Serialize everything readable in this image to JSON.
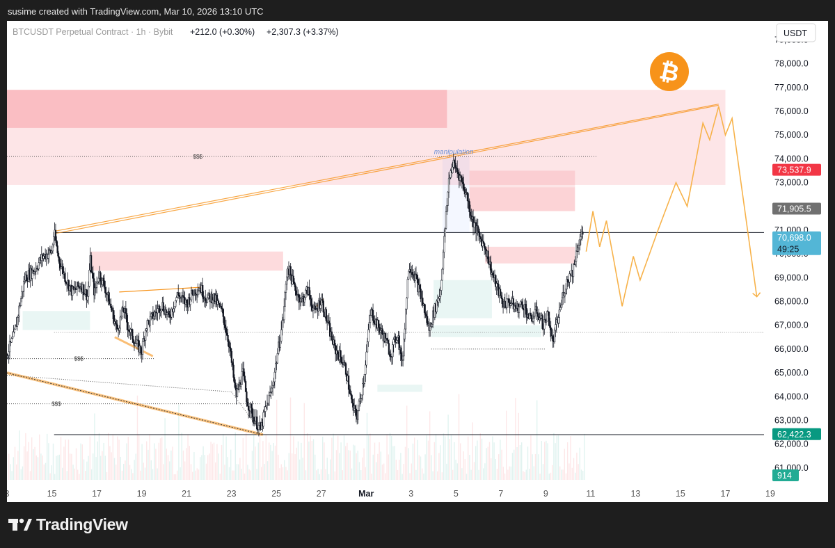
{
  "header": {
    "credit": "susime created with TradingView.com, Mar 10, 2026 13:10 UTC"
  },
  "legend": {
    "symbol": "BTCUSDT Perpetual Contract · 1h · Bybit",
    "change": "+212.0 (+0.30%)",
    "change2": "+2,307.3 (+3.37%)"
  },
  "currency_button": "USDT",
  "brand": {
    "name": "TradingView"
  },
  "colors": {
    "accent_orange": "#f7931a",
    "bearish": "#f23645",
    "bullish_badge": "#089981",
    "last_badge": "#53b6d6",
    "grey_badge": "#707070"
  },
  "chart_data": {
    "type": "candlestick",
    "symbol": "BTCUSDT",
    "interval": "1h",
    "ylim": [
      60500,
      79800
    ],
    "y_ticks": [
      61000,
      62000,
      63000,
      64000,
      65000,
      66000,
      67000,
      68000,
      69000,
      70000,
      71000,
      72000,
      73000,
      74000,
      75000,
      76000,
      77000,
      78000,
      79000
    ],
    "y_tick_labels": [
      "61,000.0",
      "62,000.0",
      "63,000.0",
      "64,000.0",
      "65,000.0",
      "66,000.0",
      "67,000.0",
      "68,000.0",
      "69,000.0",
      "70,000.0",
      "71,000.0",
      "72,000.0",
      "73,000.0",
      "74,000.0",
      "75,000.0",
      "76,000.0",
      "77,000.0",
      "78,000.0",
      "79,000.0"
    ],
    "x_ticks": [
      {
        "day": 13,
        "label": "3"
      },
      {
        "day": 15,
        "label": "15"
      },
      {
        "day": 17,
        "label": "17"
      },
      {
        "day": 19,
        "label": "19"
      },
      {
        "day": 21,
        "label": "21"
      },
      {
        "day": 23,
        "label": "23"
      },
      {
        "day": 25,
        "label": "25"
      },
      {
        "day": 27,
        "label": "27"
      },
      {
        "day": 29,
        "label": "Mar"
      },
      {
        "day": 31,
        "label": "3"
      },
      {
        "day": 33,
        "label": "5"
      },
      {
        "day": 35,
        "label": "7"
      },
      {
        "day": 37,
        "label": "9"
      },
      {
        "day": 39,
        "label": "11"
      },
      {
        "day": 41,
        "label": "13"
      },
      {
        "day": 43,
        "label": "15"
      },
      {
        "day": 45,
        "label": "17"
      },
      {
        "day": 47,
        "label": "19"
      }
    ],
    "price_badges": [
      {
        "value": 73537.9,
        "label": "73,537.9",
        "color": "#f23645"
      },
      {
        "value": 71905.5,
        "label": "71,905.5",
        "color": "#707070"
      },
      {
        "value": 70698.0,
        "label": "70,698.0",
        "sub": "49:25",
        "color": "#53b6d6"
      },
      {
        "value": 62422.3,
        "label": "62,422.3",
        "color": "#089981"
      }
    ],
    "volume_badge": "914",
    "price_path": [
      [
        13.0,
        65.8
      ],
      [
        13.3,
        66.5
      ],
      [
        13.8,
        69.0
      ],
      [
        14.2,
        69.3
      ],
      [
        14.6,
        69.9
      ],
      [
        15.0,
        70.1
      ],
      [
        15.1,
        70.9
      ],
      [
        15.3,
        69.8
      ],
      [
        15.6,
        69.0
      ],
      [
        15.9,
        68.4
      ],
      [
        16.3,
        68.7
      ],
      [
        16.6,
        68.2
      ],
      [
        16.7,
        69.8
      ],
      [
        16.9,
        68.3
      ],
      [
        17.1,
        69.2
      ],
      [
        17.4,
        68.5
      ],
      [
        17.7,
        67.5
      ],
      [
        17.9,
        66.8
      ],
      [
        18.2,
        67.7
      ],
      [
        18.4,
        66.9
      ],
      [
        18.7,
        66.3
      ],
      [
        19.0,
        65.9
      ],
      [
        19.2,
        67.0
      ],
      [
        19.6,
        67.5
      ],
      [
        19.9,
        67.9
      ],
      [
        20.2,
        67.3
      ],
      [
        20.6,
        68.3
      ],
      [
        21.0,
        67.9
      ],
      [
        21.3,
        68.4
      ],
      [
        21.6,
        68.6
      ],
      [
        21.9,
        68.1
      ],
      [
        22.2,
        68.2
      ],
      [
        22.6,
        67.5
      ],
      [
        22.9,
        66.2
      ],
      [
        23.2,
        64.0
      ],
      [
        23.5,
        65.0
      ],
      [
        23.7,
        63.8
      ],
      [
        24.0,
        63.1
      ],
      [
        24.3,
        62.6
      ],
      [
        24.5,
        63.4
      ],
      [
        24.8,
        64.3
      ],
      [
        25.0,
        65.5
      ],
      [
        25.3,
        67.3
      ],
      [
        25.5,
        69.5
      ],
      [
        25.8,
        68.6
      ],
      [
        26.1,
        68.0
      ],
      [
        26.4,
        68.5
      ],
      [
        26.7,
        67.5
      ],
      [
        27.0,
        68.1
      ],
      [
        27.3,
        67.0
      ],
      [
        27.6,
        66.0
      ],
      [
        27.9,
        65.6
      ],
      [
        28.1,
        65.1
      ],
      [
        28.4,
        63.5
      ],
      [
        28.6,
        63.2
      ],
      [
        28.9,
        64.8
      ],
      [
        29.2,
        67.6
      ],
      [
        29.5,
        67.0
      ],
      [
        29.8,
        66.5
      ],
      [
        30.1,
        65.8
      ],
      [
        30.4,
        66.7
      ],
      [
        30.6,
        65.3
      ],
      [
        30.9,
        69.6
      ],
      [
        31.2,
        69.0
      ],
      [
        31.5,
        68.0
      ],
      [
        31.8,
        66.8
      ],
      [
        32.0,
        67.5
      ],
      [
        32.3,
        68.4
      ],
      [
        32.5,
        70.9
      ],
      [
        32.7,
        73.3
      ],
      [
        32.9,
        73.8
      ],
      [
        33.2,
        73.2
      ],
      [
        33.5,
        72.4
      ],
      [
        33.7,
        71.5
      ],
      [
        34.0,
        70.8
      ],
      [
        34.3,
        70.3
      ],
      [
        34.6,
        69.2
      ],
      [
        34.9,
        68.4
      ],
      [
        35.1,
        67.9
      ],
      [
        35.4,
        68.0
      ],
      [
        35.7,
        67.7
      ],
      [
        36.0,
        67.9
      ],
      [
        36.3,
        67.2
      ],
      [
        36.6,
        67.6
      ],
      [
        36.9,
        67.0
      ],
      [
        37.1,
        67.5
      ],
      [
        37.3,
        66.2
      ],
      [
        37.5,
        67.1
      ],
      [
        37.8,
        68.4
      ],
      [
        38.0,
        69.0
      ],
      [
        38.2,
        69.3
      ],
      [
        38.4,
        70.3
      ],
      [
        38.6,
        70.8
      ]
    ],
    "scenario_path": [
      [
        38.8,
        70.1
      ],
      [
        39.1,
        71.8
      ],
      [
        39.4,
        70.3
      ],
      [
        39.7,
        71.4
      ],
      [
        40.0,
        69.9
      ],
      [
        40.4,
        67.8
      ],
      [
        40.9,
        69.9
      ],
      [
        41.2,
        68.9
      ],
      [
        42.0,
        71.0
      ],
      [
        42.8,
        73.0
      ],
      [
        43.3,
        72.0
      ],
      [
        44.0,
        75.5
      ],
      [
        44.3,
        74.8
      ],
      [
        44.7,
        76.2
      ],
      [
        45.0,
        75.0
      ],
      [
        45.3,
        75.7
      ],
      [
        46.4,
        68.2
      ]
    ],
    "zones": [
      {
        "x0": 12.0,
        "x1": 45.0,
        "y0": 72.9,
        "y1": 76.9,
        "style": "supply_light"
      },
      {
        "x0": 12.0,
        "x1": 32.6,
        "y0": 75.3,
        "y1": 76.9,
        "style": "supply_dark"
      },
      {
        "x0": 16.7,
        "x1": 25.3,
        "y0": 69.3,
        "y1": 70.1,
        "style": "supply"
      },
      {
        "x0": 33.6,
        "x1": 38.3,
        "y0": 71.8,
        "y1": 72.8,
        "style": "supply_dark"
      },
      {
        "x0": 33.6,
        "x1": 38.3,
        "y0": 72.8,
        "y1": 73.5,
        "style": "supply_light"
      },
      {
        "x0": 34.3,
        "x1": 38.3,
        "y0": 69.6,
        "y1": 70.3,
        "style": "supply"
      },
      {
        "x0": 13.7,
        "x1": 16.7,
        "y0": 66.8,
        "y1": 67.6,
        "style": "demand"
      },
      {
        "x0": 32.0,
        "x1": 34.6,
        "y0": 67.3,
        "y1": 68.9,
        "style": "demand"
      },
      {
        "x0": 31.9,
        "x1": 36.8,
        "y0": 66.5,
        "y1": 67.0,
        "style": "demand"
      },
      {
        "x0": 29.5,
        "x1": 31.5,
        "y0": 64.2,
        "y1": 64.5,
        "style": "demand"
      }
    ],
    "annotations": [
      {
        "text": "$$$",
        "x": 21.5,
        "y": 74.1
      },
      {
        "text": "$$$",
        "x": 16.2,
        "y": 65.6
      },
      {
        "text": "$$$",
        "x": 15.2,
        "y": 63.7
      },
      {
        "text": "manipulation",
        "x": 32.9,
        "y": 74.2
      }
    ],
    "levels": [
      70.9,
      62.4,
      66.7
    ],
    "icon": "bitcoin-icon"
  }
}
